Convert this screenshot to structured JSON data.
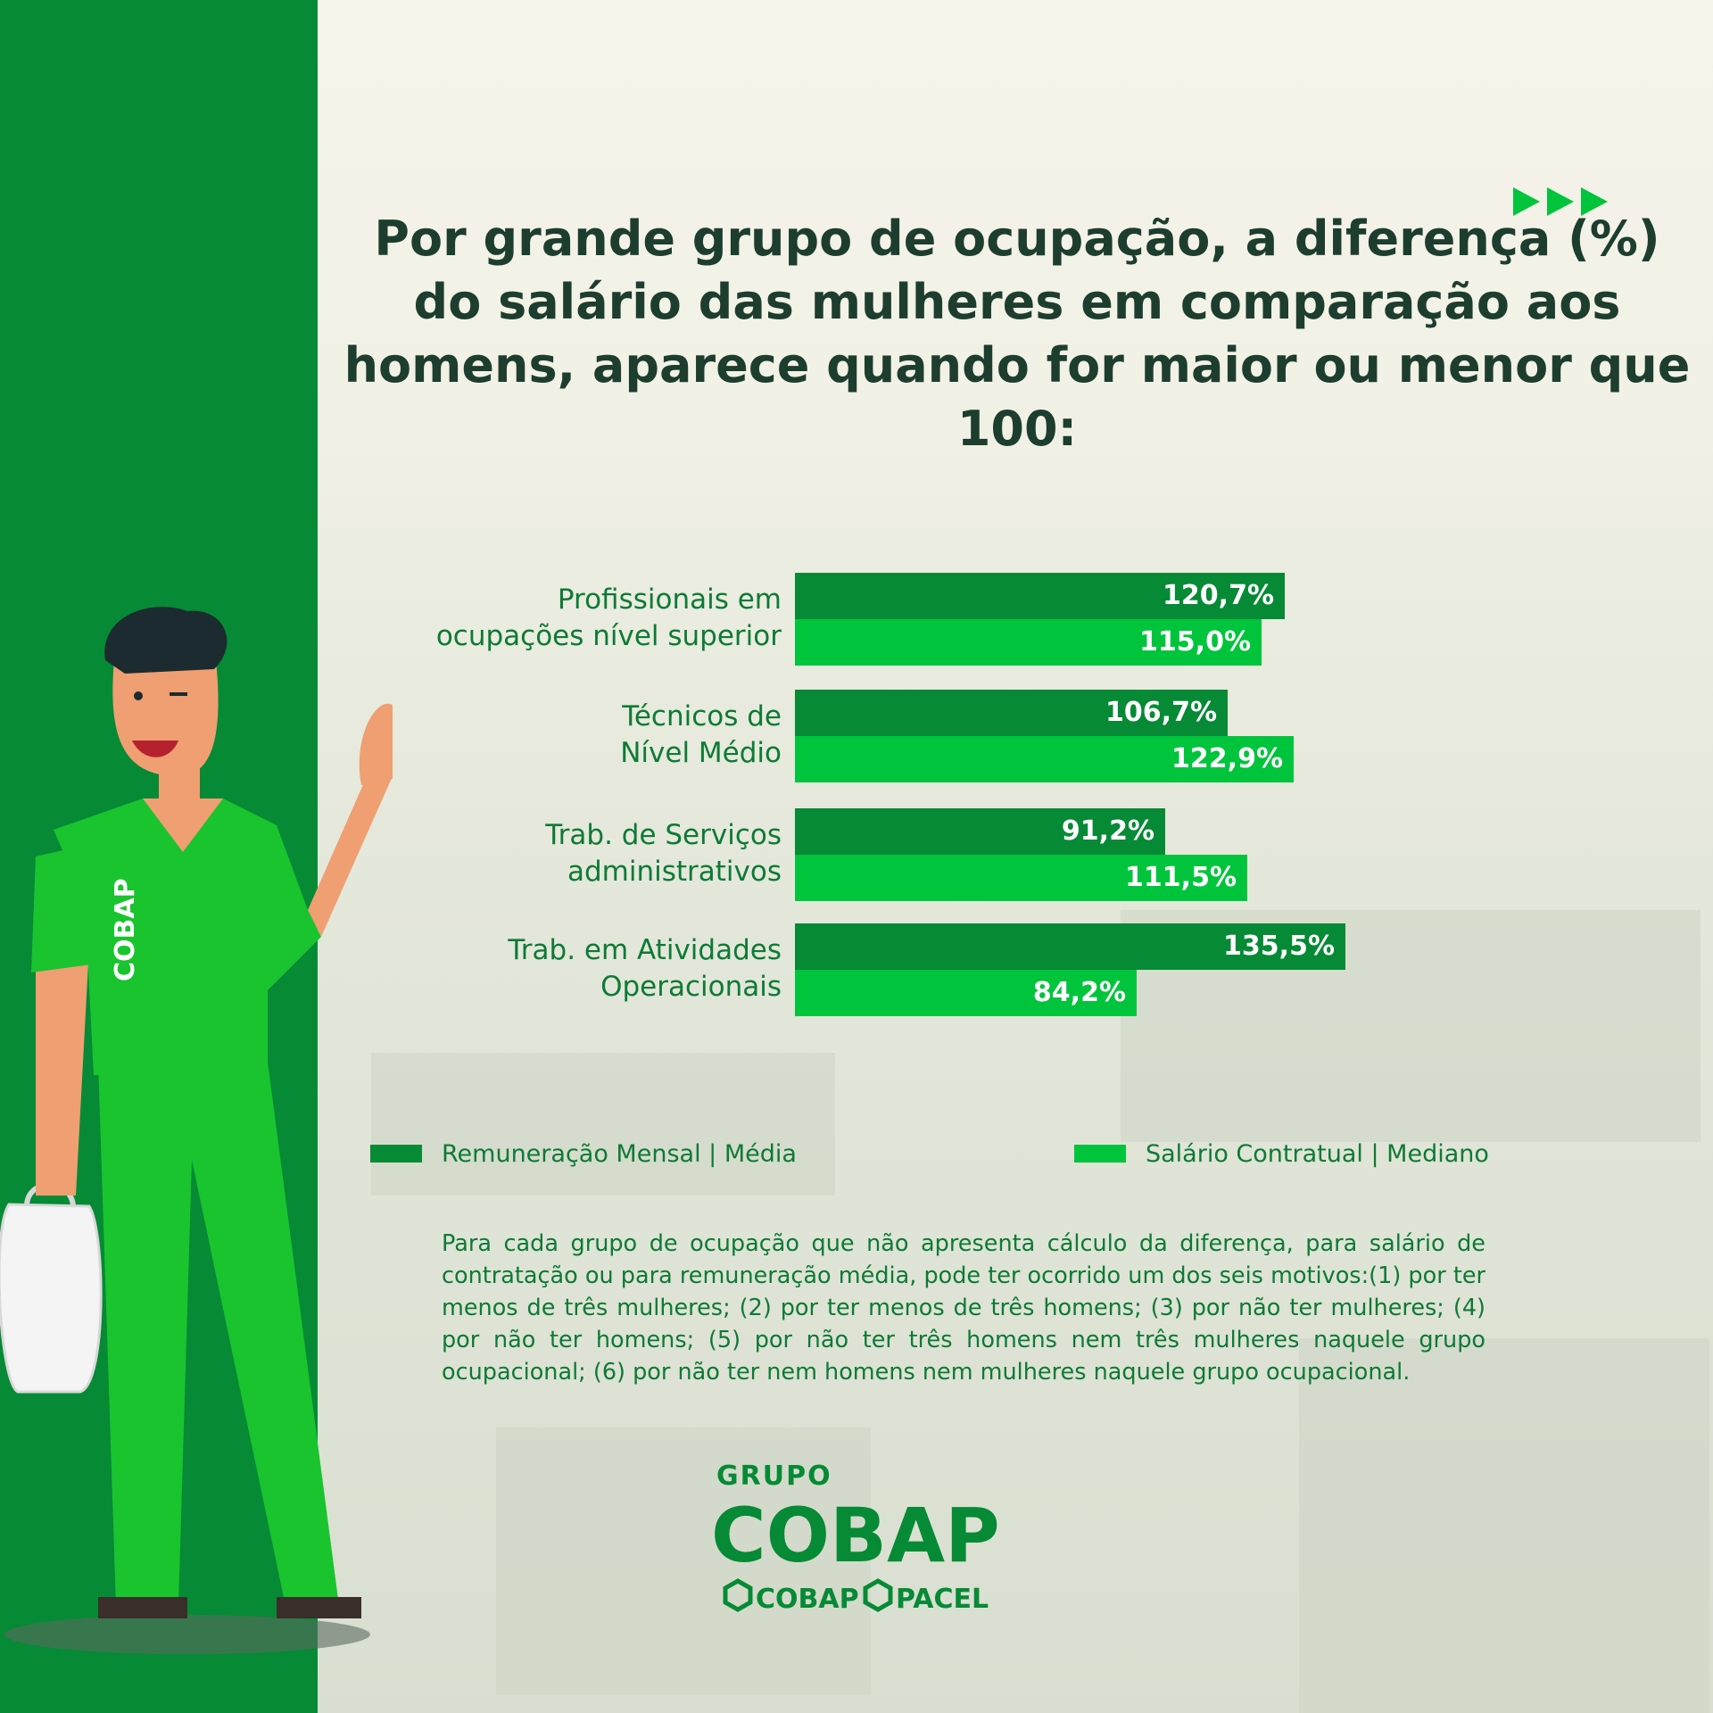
{
  "title": "Por grande grupo de ocupação, a diferença (%) do salário das mulheres em comparação aos homens, aparece quando for maior ou menor que 100:",
  "colors": {
    "dark_green": "#068a35",
    "bright_green": "#00c43c",
    "text_green": "#0d7a35",
    "title_dark": "#1d3d2f",
    "background": "#f6f4ea"
  },
  "chart_data": {
    "type": "bar",
    "orientation": "horizontal",
    "categories": [
      [
        "Profissionais em",
        "ocupações nível superior"
      ],
      [
        "Técnicos de",
        "Nível Médio"
      ],
      [
        "Trab. de Serviços",
        "administrativos"
      ],
      [
        "Trab. em Atividades",
        "Operacionais"
      ]
    ],
    "series": [
      {
        "name": "Remuneração Mensal | Média",
        "color": "#068a35",
        "values": [
          120.7,
          106.7,
          91.2,
          135.5
        ],
        "labels": [
          "120,7%",
          "106,7%",
          "91,2%",
          "135,5%"
        ]
      },
      {
        "name": "Salário Contratual | Mediano",
        "color": "#00c43c",
        "values": [
          115.0,
          122.9,
          111.5,
          84.2
        ],
        "labels": [
          "115,0%",
          "122,9%",
          "111,5%",
          "84,2%"
        ]
      }
    ],
    "legend_position": "bottom",
    "grid": false
  },
  "legend": [
    {
      "label": "Remuneração Mensal | Média",
      "color": "#068a35"
    },
    {
      "label": "Salário Contratual | Mediano",
      "color": "#00c43c"
    }
  ],
  "footnote": "Para cada grupo de ocupação que não apresenta cálculo da diferença, para salário de contratação ou para remuneração média, pode ter ocorrido um dos seis motivos:(1) por ter menos de três mulheres; (2) por ter menos de três homens; (3) por não ter mulheres; (4) por não ter homens; (5) por não ter três homens nem três mulheres naquele grupo ocupacional; (6) por não ter nem homens nem mulheres naquele grupo ocupacional.",
  "logo": {
    "group_label": "GRUPO",
    "brand": "COBAP",
    "sub_brand_1": "COBAP",
    "sub_brand_2": "PACEL"
  },
  "character_shirt_text": "COBAP",
  "icons": [
    "forward-arrows-icon",
    "logo-hexagon-icon"
  ]
}
